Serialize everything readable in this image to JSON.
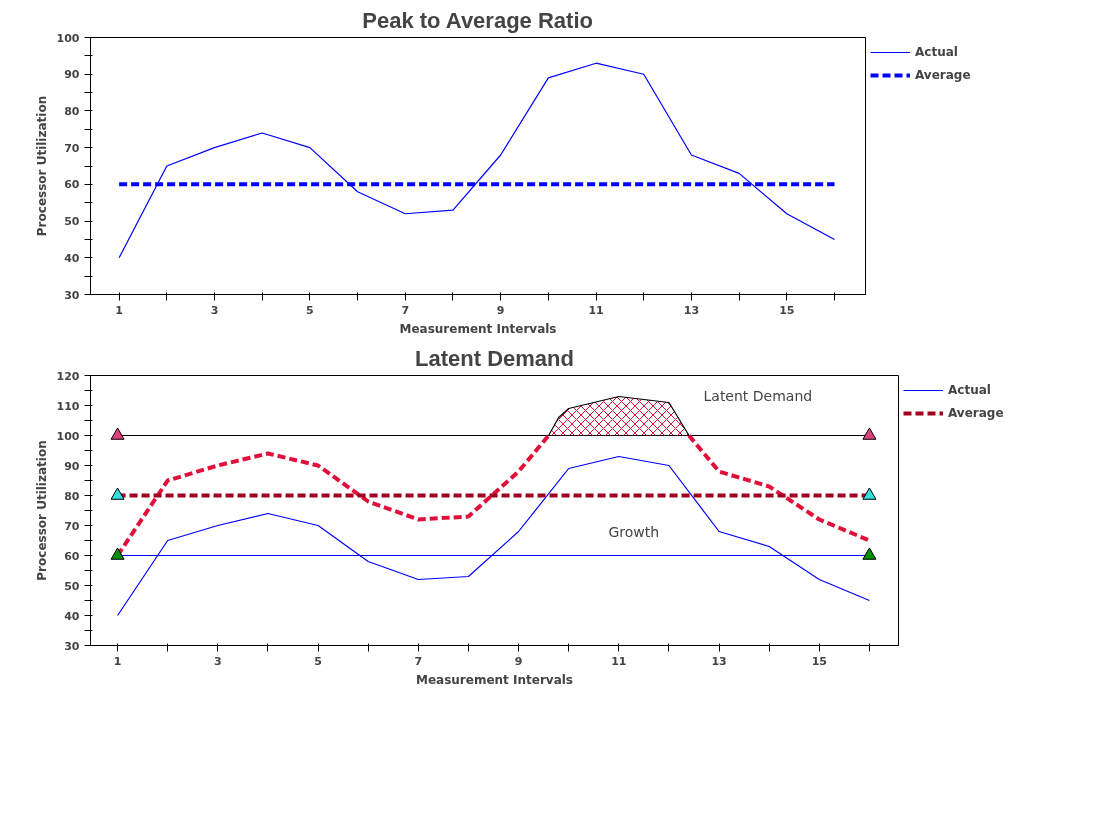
{
  "chart_data": [
    {
      "type": "line",
      "title": "Peak to Average Ratio",
      "xlabel": "Measurement Intervals",
      "ylabel": "Processor Utilization",
      "x": [
        1,
        2,
        3,
        4,
        5,
        6,
        7,
        8,
        9,
        10,
        11,
        12,
        13,
        14,
        15,
        16
      ],
      "xlim": [
        0.4,
        16.65
      ],
      "xticks": [
        1,
        {
          "value": 2,
          "label": null
        },
        3,
        {
          "value": 4,
          "label": null
        },
        5,
        {
          "value": 6,
          "label": null
        },
        7,
        {
          "value": 8,
          "label": null
        },
        9,
        {
          "value": 10,
          "label": null
        },
        11,
        {
          "value": 12,
          "label": null
        },
        13,
        {
          "value": 14,
          "label": null
        },
        15,
        {
          "value": 16,
          "label": null
        }
      ],
      "ylim": [
        30,
        100
      ],
      "yticks": [
        30,
        {
          "value": 35,
          "label": null
        },
        40,
        {
          "value": 45,
          "label": null
        },
        50,
        {
          "value": 55,
          "label": null
        },
        60,
        {
          "value": 65,
          "label": null
        },
        70,
        {
          "value": 75,
          "label": null
        },
        80,
        {
          "value": 85,
          "label": null
        },
        90,
        {
          "value": 95,
          "label": null
        },
        100
      ],
      "grid": false,
      "legend": "right",
      "series": [
        {
          "name": "Actual",
          "color": "#0000ff",
          "values": [
            40,
            65,
            70,
            74,
            70,
            58,
            52,
            53,
            68,
            89,
            93,
            90,
            68,
            63,
            52,
            45
          ]
        },
        {
          "name": "Average",
          "color": "#0000ff",
          "line_style": "dashed",
          "values": [
            60,
            60,
            60,
            60,
            60,
            60,
            60,
            60,
            60,
            60,
            60,
            60,
            60,
            60,
            60,
            60
          ]
        }
      ]
    },
    {
      "type": "line",
      "title": "Latent Demand",
      "xlabel": "Measurement Intervals",
      "ylabel": "Processor Utilization",
      "x": [
        1,
        2,
        3,
        4,
        5,
        6,
        7,
        8,
        9,
        10,
        11,
        12,
        13,
        14,
        15,
        16
      ],
      "xlim": [
        0.46,
        16.58
      ],
      "xticks": [
        1,
        {
          "value": 2,
          "label": null
        },
        3,
        {
          "value": 4,
          "label": null
        },
        5,
        {
          "value": 6,
          "label": null
        },
        7,
        {
          "value": 8,
          "label": null
        },
        9,
        {
          "value": 10,
          "label": null
        },
        11,
        {
          "value": 12,
          "label": null
        },
        13,
        {
          "value": 14,
          "label": null
        },
        15,
        {
          "value": 16,
          "label": null
        }
      ],
      "ylim": [
        30,
        120
      ],
      "yticks": [
        30,
        {
          "value": 35,
          "label": null
        },
        40,
        {
          "value": 45,
          "label": null
        },
        50,
        {
          "value": 55,
          "label": null
        },
        60,
        {
          "value": 65,
          "label": null
        },
        70,
        {
          "value": 75,
          "label": null
        },
        80,
        {
          "value": 85,
          "label": null
        },
        90,
        {
          "value": 95,
          "label": null
        },
        100,
        {
          "value": 105,
          "label": null
        },
        110,
        {
          "value": 115,
          "label": null
        },
        120
      ],
      "grid": false,
      "legend": "right",
      "annotations": [
        "Latent Demand",
        "Growth"
      ],
      "series": [
        {
          "name": "Actual",
          "color": "#0000ff",
          "values": [
            40,
            65,
            70,
            74,
            70,
            58,
            52,
            53,
            68,
            89,
            93,
            90,
            68,
            63,
            52,
            45
          ]
        },
        {
          "color": "#0000ff",
          "values": [
            60,
            60,
            60,
            60,
            60,
            60,
            60,
            60,
            60,
            60,
            60,
            60,
            60,
            60,
            60,
            60
          ]
        },
        {
          "color": "#000000",
          "values": [
            100,
            100,
            100,
            100,
            100,
            100,
            100,
            100,
            100,
            100,
            100,
            100,
            100,
            100,
            100,
            100
          ]
        },
        {
          "color": "#e0103a",
          "line_style": "dashed",
          "x": [
            1,
            2,
            3,
            4,
            5,
            6,
            7,
            8,
            9,
            9.6,
            11,
            12.4,
            13,
            14,
            15,
            16
          ],
          "values": [
            60,
            85,
            90,
            94,
            90,
            78,
            72,
            73,
            88,
            100,
            null,
            100,
            88,
            83,
            72,
            65
          ]
        },
        {
          "color": "#000000",
          "x": [
            9.6,
            9.8,
            10,
            10.5,
            11,
            11.5,
            12,
            12.4
          ],
          "values": [
            100,
            106,
            109,
            111,
            113,
            112,
            111,
            100
          ],
          "lower": [
            100,
            100,
            100,
            100,
            100,
            100,
            100,
            100
          ],
          "upper": [
            100,
            106,
            109,
            111,
            113,
            112,
            111,
            100
          ]
        },
        {
          "name": "Average",
          "color": "#a0001e",
          "line_style": "dashed",
          "values": [
            80,
            80,
            80,
            80,
            80,
            80,
            80,
            80,
            80,
            80,
            80,
            80,
            80,
            80,
            80,
            80
          ]
        },
        {
          "type": "scatter",
          "marker": "triangle",
          "color": "#e0407a",
          "x": [
            1,
            16
          ],
          "values": [
            100,
            100
          ]
        },
        {
          "type": "scatter",
          "marker": "triangle",
          "color": "#30e0e0",
          "x": [
            1,
            16
          ],
          "values": [
            80,
            80
          ]
        },
        {
          "type": "scatter",
          "marker": "triangle",
          "color": "#009000",
          "x": [
            1,
            16
          ],
          "values": [
            60,
            60
          ]
        }
      ]
    }
  ]
}
